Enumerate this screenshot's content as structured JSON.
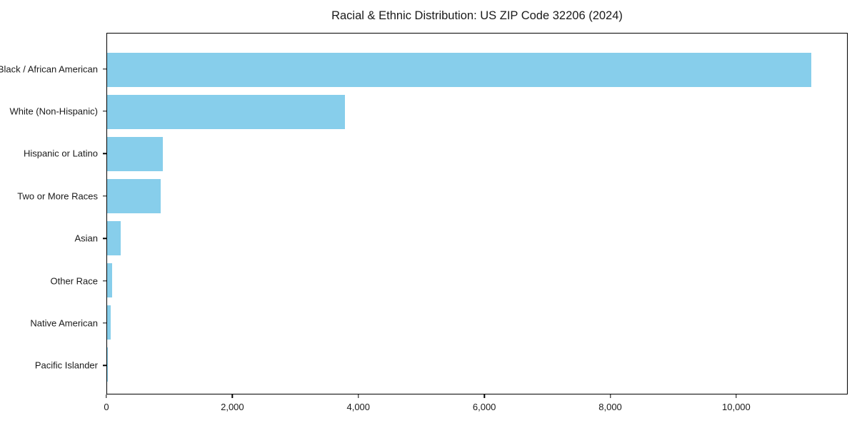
{
  "chart_data": {
    "type": "bar",
    "orientation": "horizontal",
    "title": "Racial & Ethnic Distribution: US ZIP Code 32206 (2024)",
    "categories": [
      "Black / African American",
      "White (Non-Hispanic)",
      "Hispanic or Latino",
      "Two or More Races",
      "Asian",
      "Other Race",
      "Native American",
      "Pacific Islander"
    ],
    "values": [
      11200,
      3780,
      885,
      850,
      215,
      80,
      55,
      10
    ],
    "bar_color": "#87CEEB",
    "xlabel": "",
    "ylabel": "",
    "xlim": [
      0,
      11770
    ],
    "x_ticks": [
      0,
      2000,
      4000,
      6000,
      8000,
      10000
    ],
    "x_tick_labels": [
      "0",
      "2,000",
      "4,000",
      "6,000",
      "8,000",
      "10,000"
    ],
    "grid": false,
    "legend_position": "none",
    "text_color": "#1a1a1a",
    "spine_color": "#000000"
  }
}
